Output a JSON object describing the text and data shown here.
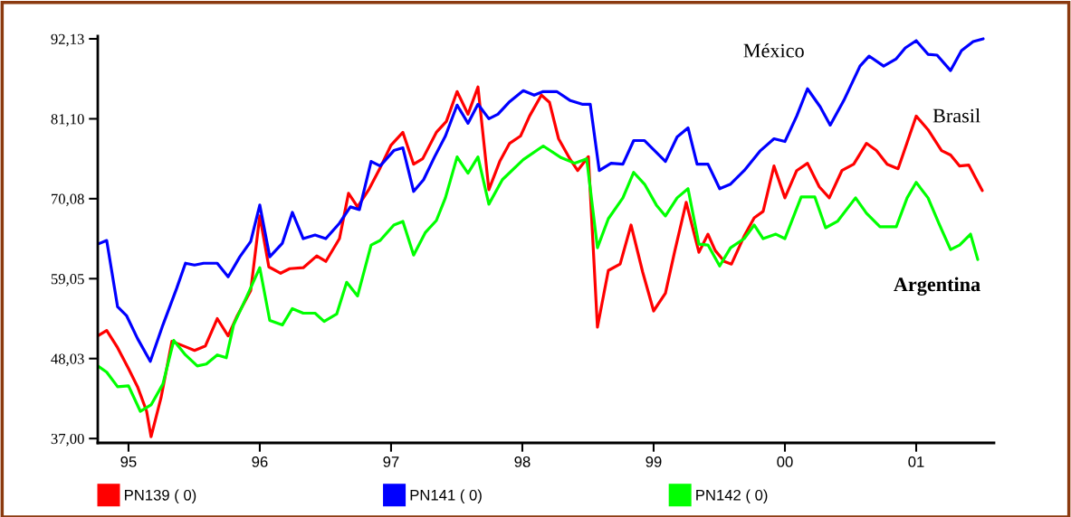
{
  "chart_data": {
    "type": "line",
    "xlim": [
      1994.766,
      2001.593
    ],
    "ylim": [
      36.4,
      92.5
    ],
    "xticks": [
      {
        "value": 1995,
        "label": "95"
      },
      {
        "value": 1996,
        "label": "96"
      },
      {
        "value": 1997,
        "label": "97"
      },
      {
        "value": 1998,
        "label": "98"
      },
      {
        "value": 1999,
        "label": "99"
      },
      {
        "value": 2000,
        "label": "00"
      },
      {
        "value": 2001,
        "label": "01"
      }
    ],
    "yticks": [
      {
        "value": 37.0,
        "label": "37,00"
      },
      {
        "value": 48.03,
        "label": "48,03"
      },
      {
        "value": 59.05,
        "label": "59,05"
      },
      {
        "value": 70.08,
        "label": "70,08"
      },
      {
        "value": 81.1,
        "label": "81,10"
      },
      {
        "value": 92.13,
        "label": "92,13"
      }
    ],
    "grid": false,
    "legend": "bottom",
    "marker": "none",
    "line_style": "solid",
    "annotations": [
      "México",
      "Brasil",
      "Argentina"
    ],
    "series": [
      {
        "name": "PN139 ( 0)",
        "color": "#ff0000",
        "x": [
          1994.766,
          1994.834,
          1994.917,
          1995.0,
          1995.069,
          1995.138,
          1995.172,
          1995.248,
          1995.331,
          1995.434,
          1995.503,
          1995.586,
          1995.676,
          1995.759,
          1995.828,
          1995.931,
          1996.0,
          1996.069,
          1996.159,
          1996.228,
          1996.331,
          1996.434,
          1996.503,
          1996.607,
          1996.676,
          1996.745,
          1996.834,
          1996.917,
          1997.0,
          1997.09,
          1997.172,
          1997.241,
          1997.345,
          1997.421,
          1997.503,
          1997.586,
          1997.662,
          1997.745,
          1997.828,
          1997.903,
          1997.986,
          1998.055,
          1998.145,
          1998.207,
          1998.276,
          1998.366,
          1998.421,
          1998.503,
          1998.572,
          1998.655,
          1998.745,
          1998.828,
          1998.917,
          1999.0,
          1999.09,
          1999.159,
          1999.248,
          1999.345,
          1999.414,
          1999.469,
          1999.538,
          1999.593,
          1999.69,
          1999.766,
          1999.834,
          1999.917,
          2000.0,
          2000.09,
          2000.172,
          2000.262,
          2000.338,
          2000.434,
          2000.524,
          2000.621,
          2000.697,
          2000.779,
          2000.862,
          2001.0,
          2001.09,
          2001.193,
          2001.262,
          2001.331,
          2001.4,
          2001.503
        ],
        "values": [
          51.16,
          51.91,
          49.53,
          46.65,
          44.14,
          40.76,
          37.25,
          42.64,
          50.41,
          49.66,
          49.15,
          49.78,
          53.54,
          51.16,
          53.92,
          57.42,
          67.7,
          60.68,
          59.8,
          60.43,
          60.56,
          62.19,
          61.43,
          64.57,
          70.83,
          68.95,
          71.46,
          74.34,
          77.47,
          79.23,
          74.84,
          75.59,
          79.23,
          80.73,
          84.86,
          81.73,
          85.49,
          71.33,
          75.22,
          77.72,
          78.72,
          81.48,
          84.36,
          83.36,
          78.35,
          75.46,
          73.96,
          75.88,
          52.36,
          60.18,
          61.06,
          66.45,
          59.93,
          54.6,
          57.04,
          62.69,
          69.58,
          62.69,
          65.19,
          62.94,
          61.43,
          61.06,
          64.94,
          67.45,
          68.33,
          74.59,
          70.2,
          73.96,
          74.97,
          71.71,
          70.2,
          73.96,
          74.84,
          77.72,
          76.72,
          74.84,
          74.21,
          81.48,
          79.6,
          76.72,
          76.1,
          74.59,
          74.72,
          71.2
        ]
      },
      {
        "name": "PN141 ( 0)",
        "color": "#0000ff",
        "x": [
          1994.766,
          1994.834,
          1994.917,
          1994.986,
          1995.069,
          1995.166,
          1995.262,
          1995.366,
          1995.434,
          1995.503,
          1995.572,
          1995.676,
          1995.759,
          1995.848,
          1995.931,
          1996.0,
          1996.076,
          1996.172,
          1996.248,
          1996.331,
          1996.421,
          1996.503,
          1996.607,
          1996.69,
          1996.759,
          1996.848,
          1996.917,
          1997.021,
          1997.09,
          1997.172,
          1997.248,
          1997.331,
          1997.414,
          1997.503,
          1997.586,
          1997.662,
          1997.745,
          1997.814,
          1997.897,
          1998.007,
          1998.09,
          1998.159,
          1998.262,
          1998.366,
          1998.455,
          1998.517,
          1998.586,
          1998.676,
          1998.766,
          1998.848,
          1998.931,
          1999.09,
          1999.179,
          1999.262,
          1999.331,
          1999.414,
          1999.503,
          1999.586,
          1999.69,
          1999.814,
          1999.917,
          2000.0,
          2000.09,
          2000.172,
          2000.269,
          2000.345,
          2000.448,
          2000.572,
          2000.641,
          2000.752,
          2000.848,
          2000.917,
          2001.0,
          2001.09,
          2001.159,
          2001.262,
          2001.345,
          2001.434,
          2001.51
        ],
        "values": [
          63.81,
          64.32,
          55.17,
          53.92,
          50.78,
          47.65,
          52.66,
          57.67,
          61.18,
          60.93,
          61.18,
          61.18,
          59.3,
          62.06,
          64.19,
          69.2,
          62.06,
          63.94,
          68.2,
          64.57,
          65.07,
          64.57,
          66.7,
          68.95,
          68.58,
          75.22,
          74.59,
          76.72,
          77.1,
          71.08,
          72.71,
          75.84,
          78.72,
          82.99,
          80.48,
          83.11,
          81.11,
          81.73,
          83.36,
          84.99,
          84.36,
          84.86,
          84.86,
          83.61,
          83.11,
          83.11,
          73.96,
          74.97,
          74.84,
          78.1,
          78.1,
          75.22,
          78.6,
          79.85,
          74.84,
          74.84,
          71.46,
          72.09,
          73.96,
          76.72,
          78.35,
          77.97,
          81.48,
          85.24,
          82.74,
          80.23,
          83.61,
          88.37,
          89.75,
          88.37,
          89.38,
          90.88,
          91.88,
          90.0,
          89.88,
          87.75,
          90.5,
          91.76,
          92.13
        ]
      },
      {
        "name": "PN142 ( 0)",
        "color": "#00ff00",
        "x": [
          1994.766,
          1994.834,
          1994.917,
          1995.0,
          1995.09,
          1995.172,
          1995.262,
          1995.345,
          1995.434,
          1995.524,
          1995.593,
          1995.676,
          1995.745,
          1995.8,
          1995.897,
          1996.0,
          1996.076,
          1996.172,
          1996.248,
          1996.331,
          1996.421,
          1996.49,
          1996.586,
          1996.662,
          1996.745,
          1996.848,
          1996.917,
          1997.021,
          1997.09,
          1997.172,
          1997.262,
          1997.345,
          1997.414,
          1997.503,
          1997.586,
          1997.662,
          1997.745,
          1997.848,
          1998.007,
          1998.159,
          1998.297,
          1998.4,
          1998.49,
          1998.572,
          1998.655,
          1998.766,
          1998.848,
          1998.931,
          1999.021,
          1999.09,
          1999.179,
          1999.262,
          1999.345,
          1999.414,
          1999.503,
          1999.586,
          1999.69,
          1999.766,
          1999.834,
          1999.931,
          2000.0,
          2000.124,
          2000.228,
          2000.31,
          2000.4,
          2000.538,
          2000.621,
          2000.724,
          2000.848,
          2000.931,
          2001.0,
          2001.09,
          2001.172,
          2001.262,
          2001.331,
          2001.414,
          2001.469
        ],
        "values": [
          47.02,
          46.15,
          44.14,
          44.27,
          40.76,
          41.64,
          44.52,
          50.53,
          48.53,
          47.02,
          47.27,
          48.53,
          48.15,
          52.66,
          56.42,
          60.56,
          53.29,
          52.66,
          54.92,
          54.29,
          54.29,
          53.16,
          54.17,
          58.55,
          56.67,
          63.69,
          64.32,
          66.45,
          66.95,
          62.31,
          65.44,
          67.07,
          70.2,
          75.84,
          73.59,
          75.84,
          69.33,
          72.71,
          75.46,
          77.35,
          75.72,
          74.97,
          75.59,
          63.31,
          67.32,
          70.2,
          73.71,
          72.08,
          69.2,
          67.7,
          70.2,
          71.46,
          63.81,
          63.69,
          60.8,
          63.31,
          64.57,
          66.45,
          64.57,
          65.19,
          64.57,
          70.32,
          70.32,
          66.07,
          66.95,
          70.2,
          68.08,
          66.2,
          66.2,
          70.2,
          72.33,
          70.2,
          66.7,
          63.06,
          63.69,
          65.19,
          61.69
        ]
      }
    ]
  }
}
